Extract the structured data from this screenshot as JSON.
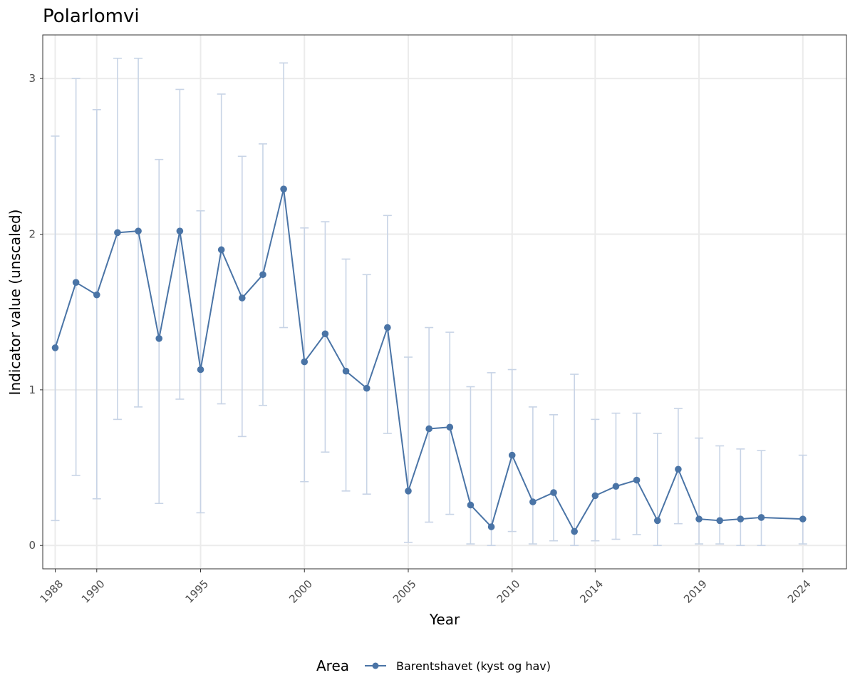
{
  "chart_data": {
    "type": "line",
    "title": "Polarlomvi",
    "xlabel": "Year",
    "ylabel": "Indicator value (unscaled)",
    "x_tick_labels": [
      "1988",
      "1990",
      "1995",
      "2000",
      "2005",
      "2010",
      "2014",
      "2019",
      "2024"
    ],
    "y_tick_labels": [
      "0",
      "1",
      "2",
      "3"
    ],
    "xlim": [
      1987.4,
      2026.1
    ],
    "ylim": [
      -0.15,
      3.28
    ],
    "grid": true,
    "legend": {
      "title": "Area",
      "position": "bottom",
      "entries": [
        "Barentshavet (kyst og hav)"
      ]
    },
    "series": [
      {
        "name": "Barentshavet (kyst og hav)",
        "color": "#4a74a6",
        "errorbar_color": "#c8d4e6",
        "points": [
          {
            "x": 1988,
            "y": 1.27,
            "lo": 0.16,
            "hi": 2.63
          },
          {
            "x": 1989,
            "y": 1.69,
            "lo": 0.45,
            "hi": 3.0
          },
          {
            "x": 1990,
            "y": 1.61,
            "lo": 0.3,
            "hi": 2.8
          },
          {
            "x": 1991,
            "y": 2.01,
            "lo": 0.81,
            "hi": 3.13
          },
          {
            "x": 1992,
            "y": 2.02,
            "lo": 0.89,
            "hi": 3.13
          },
          {
            "x": 1993,
            "y": 1.33,
            "lo": 0.27,
            "hi": 2.48
          },
          {
            "x": 1994,
            "y": 2.02,
            "lo": 0.94,
            "hi": 2.93
          },
          {
            "x": 1995,
            "y": 1.13,
            "lo": 0.21,
            "hi": 2.15
          },
          {
            "x": 1996,
            "y": 1.9,
            "lo": 0.91,
            "hi": 2.9
          },
          {
            "x": 1997,
            "y": 1.59,
            "lo": 0.7,
            "hi": 2.5
          },
          {
            "x": 1998,
            "y": 1.74,
            "lo": 0.9,
            "hi": 2.58
          },
          {
            "x": 1999,
            "y": 2.29,
            "lo": 1.4,
            "hi": 3.1
          },
          {
            "x": 2000,
            "y": 1.18,
            "lo": 0.41,
            "hi": 2.04
          },
          {
            "x": 2001,
            "y": 1.36,
            "lo": 0.6,
            "hi": 2.08
          },
          {
            "x": 2002,
            "y": 1.12,
            "lo": 0.35,
            "hi": 1.84
          },
          {
            "x": 2003,
            "y": 1.01,
            "lo": 0.33,
            "hi": 1.74
          },
          {
            "x": 2004,
            "y": 1.4,
            "lo": 0.72,
            "hi": 2.12
          },
          {
            "x": 2005,
            "y": 0.35,
            "lo": 0.02,
            "hi": 1.21
          },
          {
            "x": 2006,
            "y": 0.75,
            "lo": 0.15,
            "hi": 1.4
          },
          {
            "x": 2007,
            "y": 0.76,
            "lo": 0.2,
            "hi": 1.37
          },
          {
            "x": 2008,
            "y": 0.26,
            "lo": 0.01,
            "hi": 1.02
          },
          {
            "x": 2009,
            "y": 0.12,
            "lo": 0.0,
            "hi": 1.11
          },
          {
            "x": 2010,
            "y": 0.58,
            "lo": 0.09,
            "hi": 1.13
          },
          {
            "x": 2011,
            "y": 0.28,
            "lo": 0.01,
            "hi": 0.89
          },
          {
            "x": 2012,
            "y": 0.34,
            "lo": 0.03,
            "hi": 0.84
          },
          {
            "x": 2013,
            "y": 0.09,
            "lo": 0.0,
            "hi": 1.1
          },
          {
            "x": 2014,
            "y": 0.32,
            "lo": 0.03,
            "hi": 0.81
          },
          {
            "x": 2015,
            "y": 0.38,
            "lo": 0.04,
            "hi": 0.85
          },
          {
            "x": 2016,
            "y": 0.42,
            "lo": 0.07,
            "hi": 0.85
          },
          {
            "x": 2017,
            "y": 0.16,
            "lo": 0.0,
            "hi": 0.72
          },
          {
            "x": 2018,
            "y": 0.49,
            "lo": 0.14,
            "hi": 0.88
          },
          {
            "x": 2019,
            "y": 0.17,
            "lo": 0.01,
            "hi": 0.69
          },
          {
            "x": 2020,
            "y": 0.16,
            "lo": 0.01,
            "hi": 0.64
          },
          {
            "x": 2021,
            "y": 0.17,
            "lo": 0.0,
            "hi": 0.62
          },
          {
            "x": 2022,
            "y": 0.18,
            "lo": 0.0,
            "hi": 0.61
          },
          {
            "x": 2024,
            "y": 0.17,
            "lo": 0.01,
            "hi": 0.58
          }
        ]
      }
    ]
  }
}
